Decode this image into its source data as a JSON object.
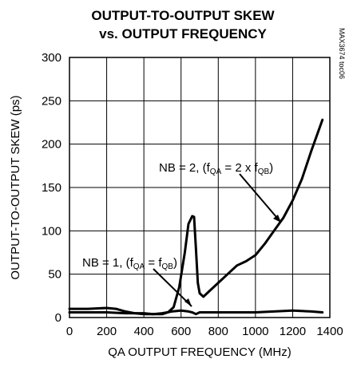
{
  "chart_data": {
    "type": "line",
    "title_line1": "OUTPUT-TO-OUTPUT SKEW",
    "title_line2": "vs. OUTPUT FREQUENCY",
    "xlabel": "QA OUTPUT FREQUENCY (MHz)",
    "ylabel": "OUTPUT-TO-OUTPUT SKEW (ps)",
    "figure_code": "MAX3674 toc06",
    "xlim": [
      0,
      1400
    ],
    "ylim": [
      0,
      300
    ],
    "x_ticks": [
      "0",
      "200",
      "400",
      "600",
      "800",
      "1000",
      "1200",
      "1400"
    ],
    "y_ticks": [
      "0",
      "50",
      "100",
      "150",
      "200",
      "250",
      "300"
    ],
    "grid": true,
    "series": [
      {
        "name": "NB = 1, (fQA = fQB)",
        "label_parts": [
          "NB = 1, (f",
          "QA",
          " = f",
          "QB",
          ")"
        ],
        "x": [
          0,
          100,
          200,
          250,
          300,
          350,
          400,
          450,
          500,
          550,
          600,
          640,
          660,
          680,
          700,
          800,
          900,
          1000,
          1100,
          1200,
          1300,
          1360
        ],
        "y": [
          10,
          10,
          11,
          10,
          7,
          5,
          4,
          4,
          5,
          7,
          8,
          7,
          6,
          4,
          6,
          6,
          6,
          6,
          7,
          8,
          7,
          6
        ]
      },
      {
        "name": "NB = 2, (fQA = 2 x fQB)",
        "label_parts": [
          "NB = 2, (f",
          "QA",
          " = 2 x f",
          "QB",
          ")"
        ],
        "x": [
          0,
          100,
          200,
          300,
          400,
          450,
          500,
          530,
          560,
          590,
          620,
          640,
          660,
          670,
          680,
          690,
          700,
          720,
          750,
          800,
          850,
          900,
          950,
          1000,
          1050,
          1100,
          1150,
          1200,
          1250,
          1300,
          1360
        ],
        "y": [
          6,
          6,
          6,
          5,
          5,
          4,
          4,
          6,
          12,
          35,
          75,
          108,
          117,
          116,
          80,
          40,
          28,
          24,
          30,
          40,
          50,
          60,
          65,
          72,
          85,
          100,
          115,
          135,
          160,
          192,
          228
        ]
      }
    ]
  }
}
